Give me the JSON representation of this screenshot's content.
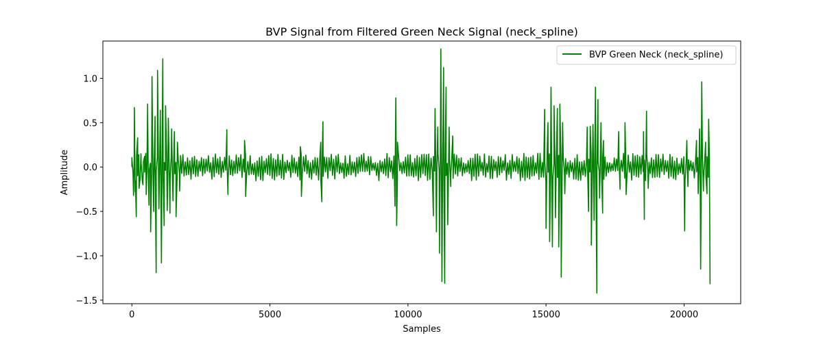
{
  "chart_data": {
    "type": "line",
    "title": "BVP Signal from Filtered Green Neck Signal (neck_spline)",
    "xlabel": "Samples",
    "ylabel": "Amplitude",
    "xlim": [
      -1050,
      22050
    ],
    "ylim": [
      -1.54,
      1.42
    ],
    "xticks": [
      0,
      5000,
      10000,
      15000,
      20000
    ],
    "xtick_labels": [
      "0",
      "5000",
      "10000",
      "15000",
      "20000"
    ],
    "yticks": [
      -1.5,
      -1.0,
      -0.5,
      0.0,
      0.5,
      1.0
    ],
    "ytick_labels": [
      "−1.5",
      "−1.0",
      "−0.5",
      "0.0",
      "0.5",
      "1.0"
    ],
    "grid": false,
    "legend": "upper right",
    "colors": {
      "line": "#008000",
      "axes": "#000000",
      "background": "#ffffff",
      "legend_frame": "#cccccc"
    },
    "series": [
      {
        "name": "BVP Green Neck (neck_spline)",
        "color": "#008000",
        "x_start": 0,
        "x_end": 20940,
        "key_points": [
          [
            0,
            0.0
          ],
          [
            60,
            -0.32
          ],
          [
            90,
            0.67
          ],
          [
            120,
            -0.28
          ],
          [
            160,
            -0.56
          ],
          [
            210,
            0.33
          ],
          [
            260,
            -0.24
          ],
          [
            330,
            0.15
          ],
          [
            400,
            -0.2
          ],
          [
            460,
            0.12
          ],
          [
            520,
            -0.31
          ],
          [
            570,
            0.71
          ],
          [
            620,
            -0.43
          ],
          [
            680,
            -0.73
          ],
          [
            730,
            1.02
          ],
          [
            790,
            -0.5
          ],
          [
            840,
            0.57
          ],
          [
            880,
            -1.19
          ],
          [
            930,
            1.09
          ],
          [
            980,
            -0.47
          ],
          [
            1030,
            0.64
          ],
          [
            1070,
            -1.08
          ],
          [
            1120,
            1.22
          ],
          [
            1170,
            -0.66
          ],
          [
            1220,
            0.69
          ],
          [
            1280,
            -0.49
          ],
          [
            1320,
            0.55
          ],
          [
            1380,
            -0.52
          ],
          [
            1440,
            0.43
          ],
          [
            1490,
            -0.38
          ],
          [
            1540,
            0.4
          ],
          [
            1600,
            -0.56
          ],
          [
            1650,
            0.28
          ],
          [
            1730,
            -0.27
          ],
          [
            3440,
            0.42
          ],
          [
            3480,
            -0.31
          ],
          [
            4080,
            0.3
          ],
          [
            4120,
            -0.33
          ],
          [
            6100,
            0.23
          ],
          [
            6140,
            -0.33
          ],
          [
            6840,
            0.28
          ],
          [
            6880,
            -0.39
          ],
          [
            6920,
            0.51
          ],
          [
            9530,
            -0.44
          ],
          [
            9560,
            0.78
          ],
          [
            9590,
            -0.66
          ],
          [
            9620,
            0.28
          ],
          [
            10920,
            -0.55
          ],
          [
            10980,
            0.66
          ],
          [
            11030,
            -0.73
          ],
          [
            11080,
            0.45
          ],
          [
            11140,
            -0.97
          ],
          [
            11190,
            1.33
          ],
          [
            11230,
            -1.29
          ],
          [
            11290,
            1.12
          ],
          [
            11330,
            -1.31
          ],
          [
            11380,
            0.9
          ],
          [
            11440,
            -0.65
          ],
          [
            11490,
            0.45
          ],
          [
            11550,
            -0.22
          ],
          [
            11620,
            0.35
          ],
          [
            14950,
            0.65
          ],
          [
            15000,
            -0.69
          ],
          [
            15070,
            0.5
          ],
          [
            15130,
            -0.84
          ],
          [
            15180,
            0.9
          ],
          [
            15230,
            -0.9
          ],
          [
            15290,
            0.69
          ],
          [
            15340,
            -0.57
          ],
          [
            15410,
            0.66
          ],
          [
            15460,
            -0.9
          ],
          [
            15500,
            0.71
          ],
          [
            15550,
            -1.24
          ],
          [
            15600,
            0.5
          ],
          [
            15680,
            -0.3
          ],
          [
            16490,
            0.45
          ],
          [
            16540,
            -0.5
          ],
          [
            16600,
            0.46
          ],
          [
            16640,
            -0.88
          ],
          [
            16700,
            0.48
          ],
          [
            16740,
            -0.6
          ],
          [
            16790,
            0.9
          ],
          [
            16840,
            -1.42
          ],
          [
            16880,
            0.76
          ],
          [
            16940,
            -0.35
          ],
          [
            16990,
            0.5
          ],
          [
            17050,
            -0.52
          ],
          [
            17080,
            0.3
          ],
          [
            17630,
            0.4
          ],
          [
            17680,
            -0.25
          ],
          [
            17860,
            0.5
          ],
          [
            17900,
            -0.31
          ],
          [
            18530,
            0.4
          ],
          [
            18560,
            -0.59
          ],
          [
            18640,
            0.63
          ],
          [
            18700,
            -0.24
          ],
          [
            20020,
            -0.72
          ],
          [
            20100,
            0.3
          ],
          [
            20140,
            -0.22
          ],
          [
            20450,
            0.3
          ],
          [
            20510,
            -0.3
          ],
          [
            20560,
            0.43
          ],
          [
            20600,
            -1.15
          ],
          [
            20640,
            0.96
          ],
          [
            20700,
            -0.27
          ],
          [
            20780,
            0.28
          ],
          [
            20830,
            -0.3
          ],
          [
            20890,
            0.54
          ],
          [
            20940,
            -1.32
          ]
        ]
      }
    ]
  }
}
